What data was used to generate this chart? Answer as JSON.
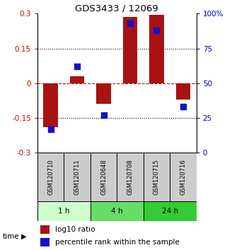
{
  "title": "GDS3433 / 12069",
  "samples": [
    "GSM120710",
    "GSM120711",
    "GSM120648",
    "GSM120708",
    "GSM120715",
    "GSM120716"
  ],
  "log10_ratio": [
    -0.19,
    0.03,
    -0.09,
    0.285,
    0.295,
    -0.07
  ],
  "percentile_rank": [
    17,
    62,
    27,
    93,
    88,
    33
  ],
  "time_groups": [
    {
      "label": "1 h",
      "color": "#ccffcc",
      "start": 0,
      "end": 2
    },
    {
      "label": "4 h",
      "color": "#66dd66",
      "start": 2,
      "end": 4
    },
    {
      "label": "24 h",
      "color": "#33cc33",
      "start": 4,
      "end": 6
    }
  ],
  "ylim_left": [
    -0.3,
    0.3
  ],
  "ylim_right": [
    0,
    100
  ],
  "yticks_left": [
    -0.3,
    -0.15,
    0,
    0.15,
    0.3
  ],
  "ytick_labels_left": [
    "-0.3",
    "-0.15",
    "0",
    "0.15",
    "0.3"
  ],
  "yticks_right": [
    0,
    25,
    50,
    75,
    100
  ],
  "ytick_labels_right": [
    "0",
    "25",
    "50",
    "75",
    "100%"
  ],
  "hlines": [
    0.15,
    -0.15
  ],
  "bar_color": "#aa1111",
  "dot_color": "#1111cc",
  "bar_width": 0.55,
  "dot_size": 40,
  "left_tick_color": "#cc0000",
  "right_tick_color": "#0000cc",
  "sample_box_color": "#cccccc",
  "legend_red_label": "log10 ratio",
  "legend_blue_label": "percentile rank within the sample"
}
